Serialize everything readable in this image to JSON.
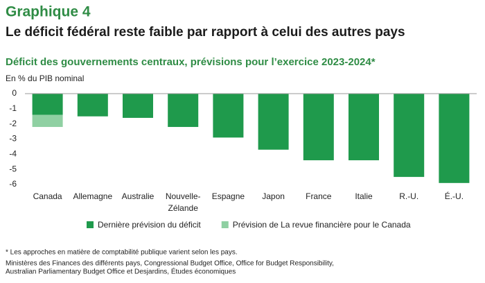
{
  "chart_data": {
    "type": "bar",
    "title": "Graphique 4",
    "subtitle": "Le déficit fédéral reste faible par rapport à celui des autres pays",
    "chart_title": "Déficit des gouvernements centraux, prévisions pour l’exercice 2023-2024*",
    "y_label": "En % du PIB nominal",
    "categories": [
      "Canada",
      "Allemagne",
      "Australie",
      "Nouvelle-Zélande",
      "Espagne",
      "Japon",
      "France",
      "Italie",
      "R.-U.",
      "É.-U."
    ],
    "series": [
      {
        "name": "Dernière prévision du déficit",
        "color": "#1f9a4c",
        "values": [
          -1.4,
          -1.5,
          -1.6,
          -2.2,
          -2.9,
          -3.7,
          -4.4,
          -4.4,
          -5.5,
          -5.9
        ]
      },
      {
        "name": "Prévision de La revue financière pour le Canada",
        "color": "#8fd0a2",
        "values": [
          -0.8,
          null,
          null,
          null,
          null,
          null,
          null,
          null,
          null,
          null
        ]
      }
    ],
    "stacked": true,
    "ylim": [
      0,
      -6
    ],
    "yticks": [
      0,
      -1,
      -2,
      -3,
      -4,
      -5,
      -6
    ],
    "notes": [
      "* Les approches en matière de comptabilité publique varient selon les pays.",
      "Ministères des Finances des différents pays, Congressional Budget Office, Office for Budget Responsibility,",
      "Australian Parliamentary Budget Office et Desjardins, Études économiques"
    ]
  }
}
